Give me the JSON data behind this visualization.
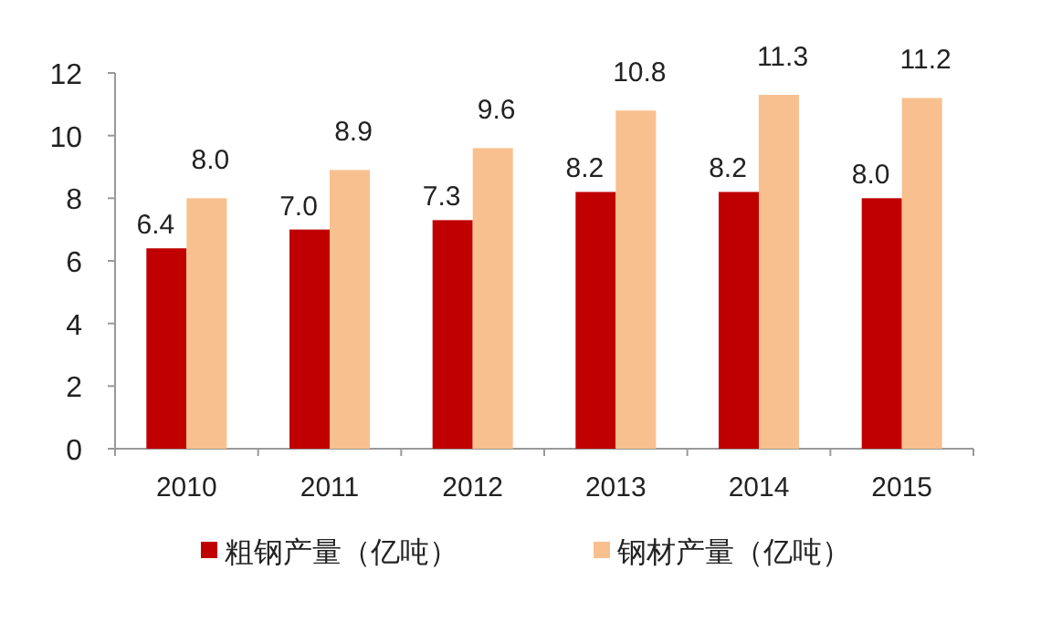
{
  "chart_data": {
    "type": "bar",
    "categories": [
      "2010",
      "2011",
      "2012",
      "2013",
      "2014",
      "2015"
    ],
    "series": [
      {
        "name": "粗钢产量（亿吨）",
        "color": "#c00000",
        "values": [
          6.4,
          7.0,
          7.3,
          8.2,
          8.2,
          8.0
        ],
        "value_labels": [
          "6.4",
          "7.0",
          "7.3",
          "8.2",
          "8.2",
          "8.0"
        ]
      },
      {
        "name": "钢材产量（亿吨）",
        "color": "#f8c08e",
        "values": [
          8.0,
          8.9,
          9.6,
          10.8,
          11.3,
          11.2
        ],
        "value_labels": [
          "8.0",
          "8.9",
          "9.6",
          "10.8",
          "11.3",
          "11.2"
        ]
      }
    ],
    "ylim": [
      0,
      12
    ],
    "yticks": [
      0,
      2,
      4,
      6,
      8,
      10,
      12
    ],
    "grid": false,
    "legend": "bottom"
  }
}
